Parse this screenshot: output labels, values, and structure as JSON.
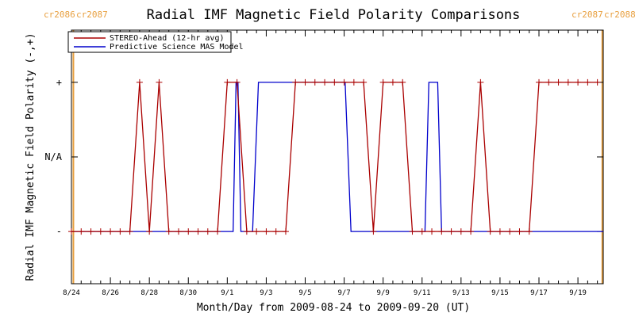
{
  "chart_data": {
    "type": "line",
    "title": "Radial IMF Magnetic Field Polarity Comparisons",
    "xlabel": "Month/Day from 2009-08-24 to 2009-09-20 (UT)",
    "ylabel": "Radial IMF Magnetic Field Polarity (-,+)",
    "x_unit": "days",
    "xlim": [
      0,
      27.3
    ],
    "ylim": [
      -1.7,
      1.7
    ],
    "y_tick_values": [
      1,
      0,
      -1
    ],
    "y_tick_labels": [
      "+",
      "N/A",
      "-"
    ],
    "x_tick_values": [
      0,
      2,
      4,
      6,
      8,
      10,
      12,
      14,
      16,
      18,
      20,
      22,
      24,
      26
    ],
    "x_tick_labels": [
      "8/24",
      "8/26",
      "8/28",
      "8/30",
      "9/1",
      "9/3",
      "9/5",
      "9/7",
      "9/9",
      "9/11",
      "9/13",
      "9/15",
      "9/17",
      "9/19"
    ],
    "x_minor_step": 0.5,
    "carrington_markers": [
      {
        "x": 0.1,
        "left_label": "cr2086",
        "right_label": "cr2087",
        "color": "#e8a040"
      },
      {
        "x": 27.25,
        "left_label": "cr2087",
        "right_label": "cr2088",
        "color": "#e8a040"
      }
    ],
    "legend_position": "top-left",
    "series": [
      {
        "name": "STEREO-Ahead (12-hr avg)",
        "color": "#aa0000",
        "marker": "+",
        "x": [
          0,
          0.5,
          1,
          1.5,
          2,
          2.5,
          3,
          3.5,
          4,
          4.5,
          5,
          5.5,
          6,
          6.5,
          7,
          7.5,
          8,
          8.5,
          9,
          9.5,
          10,
          10.5,
          11,
          11.5,
          12,
          12.5,
          13,
          13.5,
          14,
          14.5,
          15,
          15.5,
          16,
          16.5,
          17,
          17.5,
          18,
          18.5,
          19,
          19.5,
          20,
          20.5,
          21,
          21.5,
          22,
          22.5,
          23,
          23.5,
          24,
          24.5,
          25,
          25.5,
          26,
          26.5,
          27
        ],
        "y": [
          -1,
          -1,
          -1,
          -1,
          -1,
          -1,
          -1,
          1,
          -1,
          1,
          -1,
          -1,
          -1,
          -1,
          -1,
          -1,
          1,
          1,
          -1,
          -1,
          -1,
          -1,
          -1,
          1,
          1,
          1,
          1,
          1,
          1,
          1,
          1,
          -1,
          1,
          1,
          1,
          -1,
          -1,
          -1,
          -1,
          -1,
          -1,
          -1,
          1,
          -1,
          -1,
          -1,
          -1,
          -1,
          1,
          1,
          1,
          1,
          1,
          1,
          1
        ]
      },
      {
        "name": "Predictive Science MAS Model",
        "color": "#0000cc",
        "marker": "",
        "x": [
          0,
          8.3,
          8.45,
          8.55,
          8.7,
          9.3,
          9.6,
          14.05,
          14.35,
          18.15,
          18.35,
          18.8,
          19.0,
          27.3
        ],
        "y": [
          -1,
          -1,
          1,
          1,
          -1,
          -1,
          1,
          1,
          -1,
          -1,
          1,
          1,
          -1,
          -1
        ]
      }
    ]
  }
}
